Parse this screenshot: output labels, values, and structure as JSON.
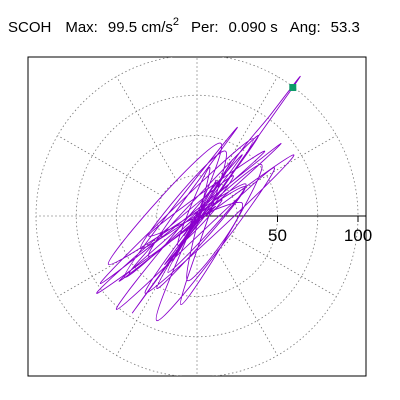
{
  "header": {
    "station": "SCOH",
    "max_label": "Max:",
    "max_value": "99.5",
    "max_unit": "cm/s",
    "max_unit_exp": "2",
    "per_label": "Per:",
    "per_value": "0.090 s",
    "ang_label": "Ang:",
    "ang_value": "53.3"
  },
  "chart_data": {
    "type": "scatter",
    "radial_ticks": [
      {
        "value": 50,
        "label": "50"
      },
      {
        "value": 100,
        "label": "100"
      }
    ],
    "radial_axis_max": 100,
    "ring_radii": [
      25,
      50,
      75,
      100
    ],
    "spoke_angles_deg": [
      0,
      30,
      60,
      90,
      120,
      150,
      180,
      210,
      240,
      270,
      300,
      330
    ],
    "peak_point": {
      "x": 59.5,
      "y": 79.8
    },
    "trace_color": "#8a00cc",
    "peak_marker_color": "#0e9a6a",
    "grid": "dotted",
    "trace_points": [
      [
        0,
        0
      ],
      [
        5,
        8
      ],
      [
        -8,
        -12
      ],
      [
        12,
        22
      ],
      [
        -15,
        -28
      ],
      [
        22,
        35
      ],
      [
        -25,
        -45
      ],
      [
        30,
        18
      ],
      [
        -35,
        -20
      ],
      [
        18,
        40
      ],
      [
        -10,
        -55
      ],
      [
        40,
        32
      ],
      [
        -45,
        -38
      ],
      [
        25,
        55
      ],
      [
        -30,
        -25
      ],
      [
        52,
        45
      ],
      [
        -60,
        -42
      ],
      [
        35,
        48
      ],
      [
        -40,
        -60
      ],
      [
        59.5,
        79.8
      ],
      [
        45,
        62
      ],
      [
        20,
        30
      ],
      [
        -18,
        -35
      ],
      [
        30,
        20
      ],
      [
        -55,
        -30
      ],
      [
        15,
        45
      ],
      [
        -25,
        -65
      ],
      [
        48,
        30
      ],
      [
        -50,
        -58
      ],
      [
        28,
        38
      ],
      [
        -32,
        -48
      ],
      [
        60,
        38
      ],
      [
        -62,
        -48
      ],
      [
        22,
        25
      ],
      [
        -20,
        -30
      ],
      [
        38,
        50
      ],
      [
        -42,
        -35
      ],
      [
        15,
        10
      ],
      [
        -12,
        -18
      ],
      [
        8,
        30
      ],
      [
        -6,
        -40
      ],
      [
        28,
        8
      ],
      [
        -30,
        -12
      ],
      [
        42,
        40
      ],
      [
        -48,
        -40
      ],
      [
        10,
        5
      ],
      [
        -5,
        -8
      ],
      [
        0,
        0
      ]
    ]
  }
}
